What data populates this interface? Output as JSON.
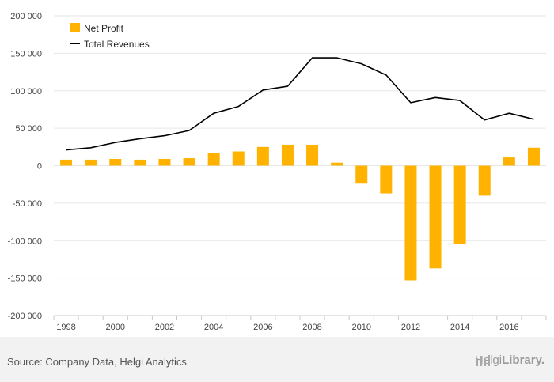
{
  "chart_data": {
    "type": "bar",
    "x": [
      1998,
      1999,
      2000,
      2001,
      2002,
      2003,
      2004,
      2005,
      2006,
      2007,
      2008,
      2009,
      2010,
      2011,
      2012,
      2013,
      2014,
      2015,
      2016,
      2017
    ],
    "x_tick_labels": [
      "1998",
      "2000",
      "2002",
      "2004",
      "2006",
      "2008",
      "2010",
      "2012",
      "2014",
      "2016"
    ],
    "y_tick_labels": [
      "200 000",
      "150 000",
      "100 000",
      "50 000",
      "0",
      "-50 000",
      "-100 000",
      "-150 000",
      "-200 000"
    ],
    "ylim": [
      -200000,
      200000
    ],
    "y_ticks": [
      200000,
      150000,
      100000,
      50000,
      0,
      -50000,
      -100000,
      -150000,
      -200000
    ],
    "grid": true,
    "legend_position": "top-left",
    "series": [
      {
        "name": "Net Profit",
        "type": "bar",
        "color": "#FFB300",
        "values": [
          8000,
          8000,
          9000,
          8000,
          9000,
          10000,
          17000,
          19000,
          25000,
          28000,
          28000,
          4000,
          -24000,
          -37000,
          -153000,
          -137000,
          -104000,
          -40000,
          11000,
          24000
        ]
      },
      {
        "name": "Total Revenues",
        "type": "line",
        "color": "#000000",
        "values": [
          21000,
          24000,
          31000,
          36000,
          40000,
          47000,
          70000,
          79000,
          101000,
          106000,
          144000,
          144000,
          136000,
          121000,
          84000,
          91000,
          87000,
          61000,
          70000,
          62000
        ]
      }
    ]
  },
  "footer": {
    "source": "Source: Company Data, Helgi Analytics",
    "brand_name": "Helgi",
    "brand_suffix": "Library."
  }
}
